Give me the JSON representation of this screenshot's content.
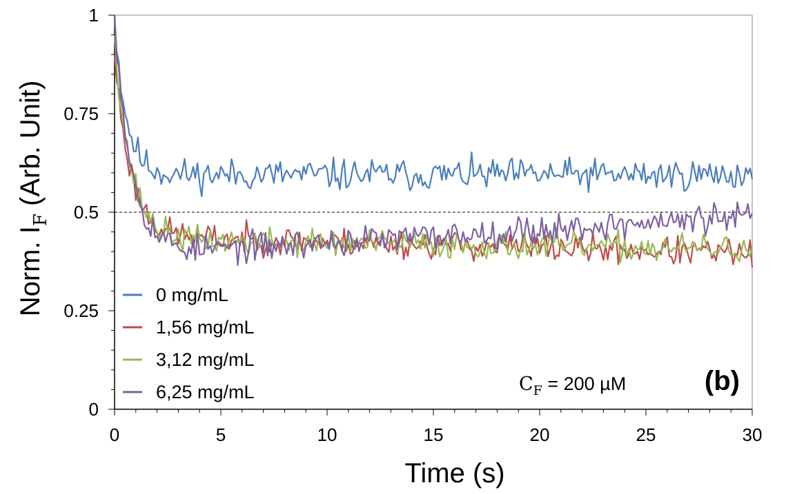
{
  "chart_data": {
    "type": "line",
    "title": "",
    "panel_label": "(b)",
    "xlabel": "Time (s)",
    "ylabel": {
      "prefix": "Norm. I",
      "sub": "F",
      "suffix": " (Arb. Unit)"
    },
    "xlim": [
      0,
      30
    ],
    "ylim": [
      0,
      1
    ],
    "xticks": [
      0,
      5,
      10,
      15,
      20,
      25,
      30
    ],
    "xtick_labels": [
      "0",
      "5",
      "10",
      "15",
      "20",
      "25",
      "30"
    ],
    "yticks": [
      0,
      0.25,
      0.5,
      0.75,
      1
    ],
    "ytick_labels": [
      "0",
      "0.25",
      "0.5",
      "0.75",
      "1"
    ],
    "reference_line": {
      "y": 0.5,
      "style": "dashed"
    },
    "annotation": {
      "symbol": "C",
      "sub": "F",
      "text": " = 200 µM"
    },
    "legend_position": "bottom-left",
    "series": [
      {
        "name": "0 mg/mL",
        "color": "#4a7ebb",
        "start": 1.0,
        "tau": 0.55,
        "plateau": 0.595,
        "drift": 0.0,
        "noise": 0.025,
        "seed": 11
      },
      {
        "name": "1,56 mg/mL",
        "color": "#be4b48",
        "start": 0.9,
        "tau": 0.75,
        "plateau": 0.44,
        "drift": -0.0015,
        "noise": 0.022,
        "seed": 23
      },
      {
        "name": "3,12 mg/mL",
        "color": "#98b954",
        "start": 0.95,
        "tau": 0.75,
        "plateau": 0.43,
        "drift": -0.0008,
        "noise": 0.022,
        "seed": 37
      },
      {
        "name": "6,25 mg/mL",
        "color": "#7d60a0",
        "start": 1.0,
        "tau": 0.8,
        "plateau": 0.39,
        "drift": 0.0033,
        "noise": 0.023,
        "seed": 53
      }
    ]
  }
}
